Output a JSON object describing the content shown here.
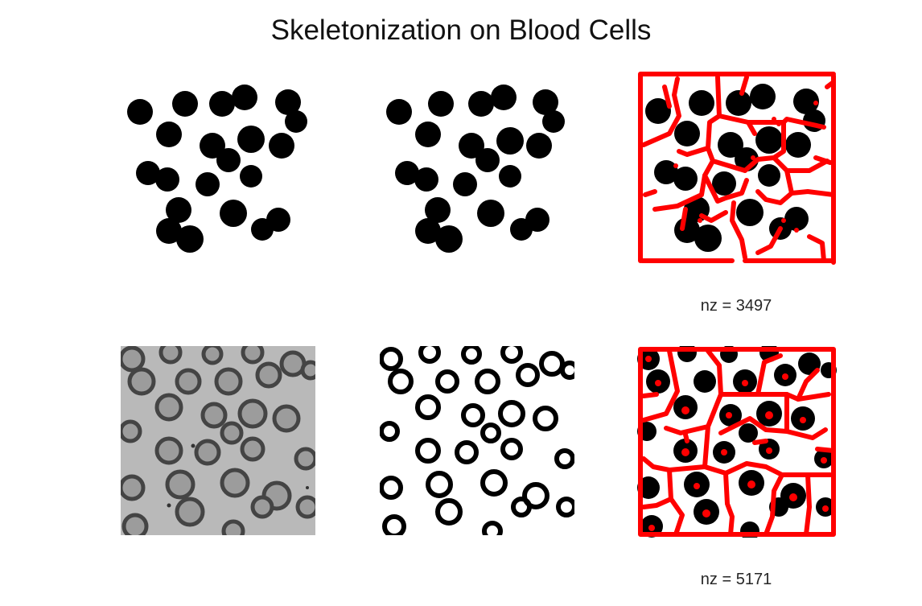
{
  "figure": {
    "title": "Skeletonization on Blood Cells",
    "colors": {
      "skeleton": "#ff0000",
      "cell": "#000000",
      "background": "#ffffff",
      "gray_field": "#b9b9b9"
    },
    "panels": [
      {
        "name": "binary-cells-top-left"
      },
      {
        "name": "binary-cells-top-middle"
      },
      {
        "name": "skeleton-top-right",
        "nz_label": "nz = 3497"
      },
      {
        "name": "grayscale-blood-cells"
      },
      {
        "name": "ring-cells-bottom-middle"
      },
      {
        "name": "skeleton-bottom-right",
        "nz_label": "nz = 5171"
      }
    ]
  }
}
